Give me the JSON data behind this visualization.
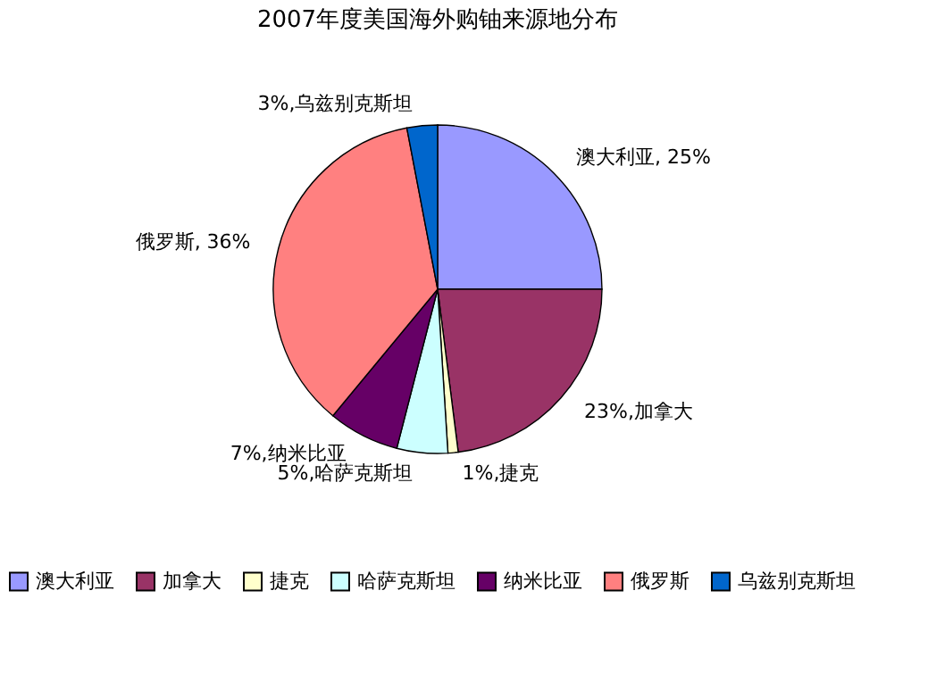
{
  "chart_data": {
    "type": "pie",
    "title": "2007年度美国海外购铀来源地分布",
    "categories": [
      "澳大利亚",
      "加拿大",
      "捷克",
      "哈萨克斯坦",
      "纳米比亚",
      "俄罗斯",
      "乌兹别克斯坦"
    ],
    "values": [
      25,
      23,
      1,
      5,
      7,
      36,
      3
    ],
    "colors": [
      "#9999ff",
      "#993366",
      "#ffffcc",
      "#ccffff",
      "#660066",
      "#ff8080",
      "#0066cc"
    ],
    "value_labels": [
      "澳大利亚, 25%",
      "23%,加拿大",
      "1%,捷克",
      "5%,哈萨克斯坦",
      "7%,纳米比亚",
      "俄罗斯, 36%",
      "3%,乌兹别克斯坦"
    ],
    "legend": "bottom"
  }
}
